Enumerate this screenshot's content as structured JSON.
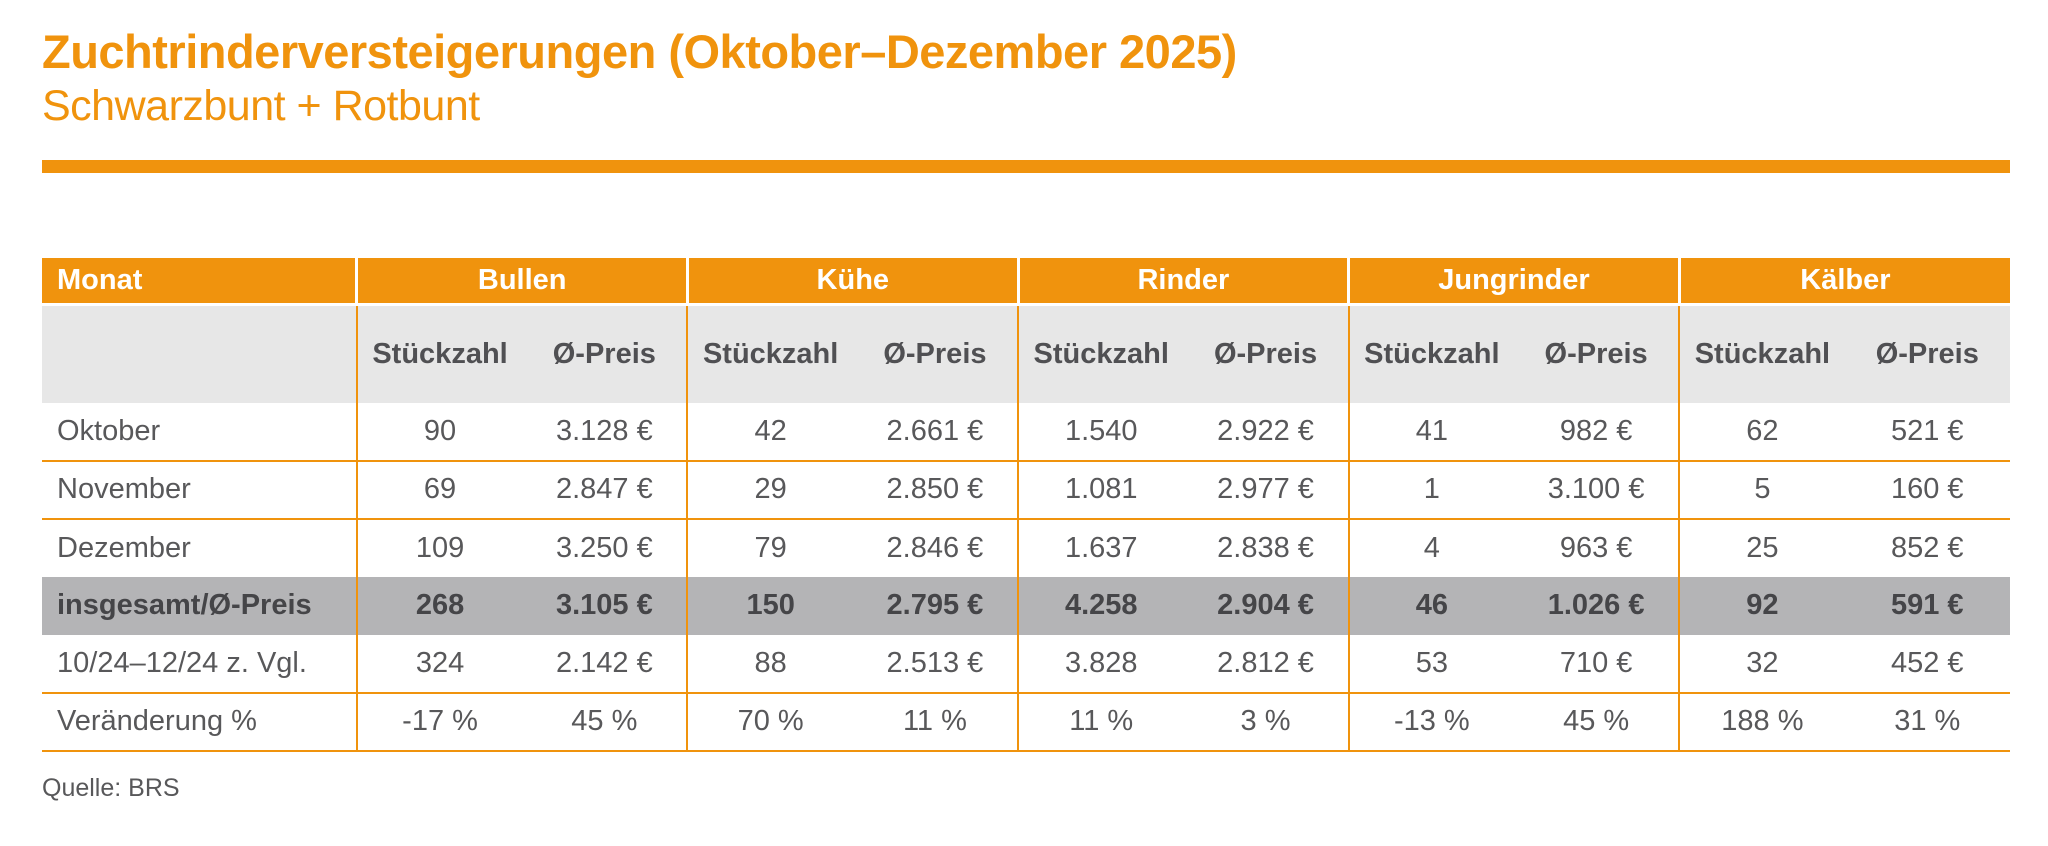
{
  "page": {
    "title": "Zuchtrinderversteigerungen (Oktober–Dezember 2025)",
    "subtitle": "Schwarzbunt + Rotbunt",
    "source": "Quelle: BRS"
  },
  "colors": {
    "accent_orange": "#F0930D",
    "subheader_bg": "#E7E7E7",
    "total_row_bg": "#B4B4B6",
    "text_dark": "#58585A",
    "header_text": "#FFFFFF"
  },
  "chart_data": {
    "type": "table",
    "title": "Zuchtrinderversteigerungen (Oktober–Dezember 2025) – Schwarzbunt + Rotbunt",
    "column_groups": [
      {
        "label": "Monat",
        "span": 1
      },
      {
        "label": "Bullen",
        "span": 2
      },
      {
        "label": "Kühe",
        "span": 2
      },
      {
        "label": "Rinder",
        "span": 2
      },
      {
        "label": "Jungrinder",
        "span": 2
      },
      {
        "label": "Kälber",
        "span": 2
      }
    ],
    "sub_headers": [
      "Stückzahl",
      "Ø-Preis"
    ],
    "rows": [
      {
        "label": "Oktober",
        "highlight": false,
        "values": [
          "90",
          "3.128 €",
          "42",
          "2.661 €",
          "1.540",
          "2.922 €",
          "41",
          "982 €",
          "62",
          "521 €"
        ]
      },
      {
        "label": "November",
        "highlight": false,
        "values": [
          "69",
          "2.847 €",
          "29",
          "2.850 €",
          "1.081",
          "2.977 €",
          "1",
          "3.100 €",
          "5",
          "160 €"
        ]
      },
      {
        "label": "Dezember",
        "highlight": false,
        "values": [
          "109",
          "3.250 €",
          "79",
          "2.846 €",
          "1.637",
          "2.838 €",
          "4",
          "963 €",
          "25",
          "852 €"
        ]
      },
      {
        "label": "insgesamt/Ø-Preis",
        "highlight": true,
        "values": [
          "268",
          "3.105 €",
          "150",
          "2.795 €",
          "4.258",
          "2.904 €",
          "46",
          "1.026 €",
          "92",
          "591 €"
        ]
      },
      {
        "label": "10/24–12/24  z. Vgl.",
        "highlight": false,
        "values": [
          "324",
          "2.142 €",
          "88",
          "2.513 €",
          "3.828",
          "2.812 €",
          "53",
          "710 €",
          "32",
          "452 €"
        ]
      },
      {
        "label": "Veränderung %",
        "highlight": false,
        "values": [
          "-17 %",
          "45 %",
          "70 %",
          "11 %",
          "11 %",
          "3 %",
          "-13 %",
          "45 %",
          "188 %",
          "31 %"
        ]
      }
    ]
  }
}
